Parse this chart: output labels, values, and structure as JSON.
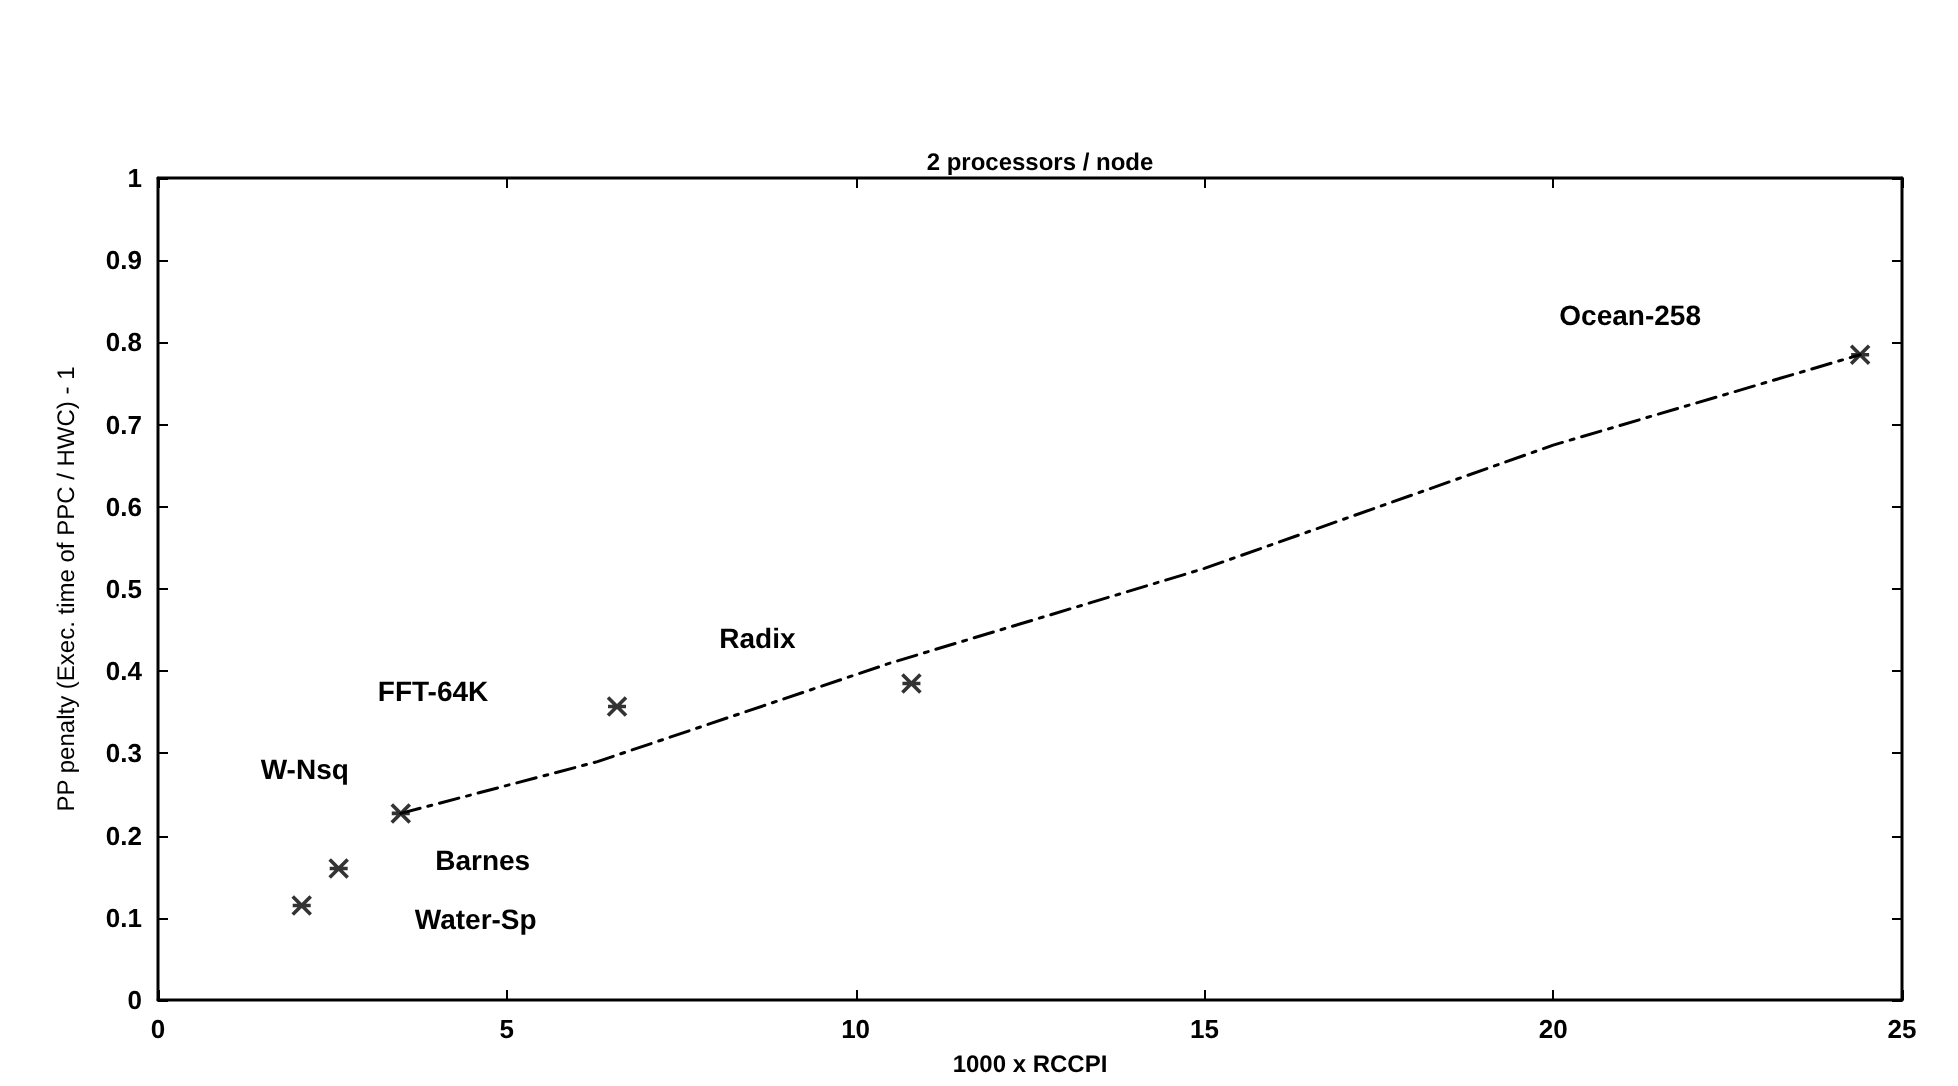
{
  "chart_data": {
    "type": "scatter",
    "title": "2 processors / node",
    "xlabel": "1000 x RCCPI",
    "ylabel": "PP penalty (Exec. time of PPC / HWC) - 1",
    "series": [
      {
        "color": "#000000",
        "marker": "cross",
        "x": [
          2.06,
          2.59,
          3.48,
          6.58,
          10.8,
          24.4
        ],
        "values": [
          0.115,
          0.16,
          0.227,
          0.357,
          0.385,
          0.785
        ]
      },
      {
        "type": "line",
        "color": "#000000",
        "marker": "none",
        "line_style": "dashed",
        "x": [
          3.48,
          6.3,
          10.5,
          15,
          20,
          24.4
        ],
        "values": [
          0.227,
          0.29,
          0.41,
          0.525,
          0.675,
          0.785
        ]
      }
    ],
    "annotations": [
      "Water-Sp",
      "Barnes",
      "W-Nsq",
      "FFT-64K",
      "Radix",
      "Ocean-258"
    ],
    "xlim": [
      0,
      25
    ],
    "xticks": [
      0,
      5,
      10,
      15,
      20,
      25
    ],
    "ylim": [
      0,
      1
    ],
    "yticks": [
      0,
      0.1,
      0.2,
      0.3,
      0.4,
      0.5,
      0.6,
      0.7,
      0.8,
      0.9,
      1
    ],
    "grid": false
  }
}
